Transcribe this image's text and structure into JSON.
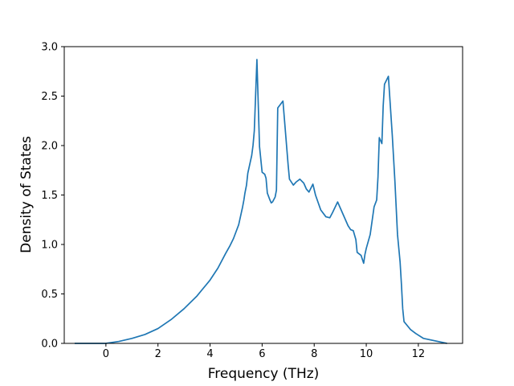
{
  "chart_data": {
    "type": "line",
    "title": "",
    "xlabel": "Frequency (THz)",
    "ylabel": "Density of States",
    "xlim": [
      -1.6,
      13.7
    ],
    "ylim": [
      0,
      3.0
    ],
    "grid": false,
    "legend": "none",
    "x_ticks": [
      0,
      2,
      4,
      6,
      8,
      10,
      12
    ],
    "x_tick_labels": [
      "0",
      "2",
      "4",
      "6",
      "8",
      "10",
      "12"
    ],
    "y_ticks": [
      0,
      0.5,
      1.0,
      1.5,
      2.0,
      2.5,
      3.0
    ],
    "y_tick_labels": [
      "0.0",
      "0.5",
      "1.0",
      "1.5",
      "2.0",
      "2.5",
      "3.0"
    ],
    "series": [
      {
        "color": "#1f77b4",
        "x": [
          -1.2,
          -0.5,
          0.0,
          0.5,
          1.0,
          1.5,
          2.0,
          2.5,
          3.0,
          3.5,
          4.0,
          4.3,
          4.6,
          4.75,
          4.9,
          5.1,
          5.25,
          5.3,
          5.34,
          5.4,
          5.45,
          5.5,
          5.6,
          5.65,
          5.7,
          5.8,
          5.9,
          6.0,
          6.1,
          6.15,
          6.2,
          6.3,
          6.35,
          6.4,
          6.5,
          6.55,
          6.6,
          6.8,
          7.0,
          7.05,
          7.2,
          7.3,
          7.45,
          7.6,
          7.7,
          7.8,
          7.95,
          8.05,
          8.25,
          8.45,
          8.6,
          8.7,
          8.9,
          9.1,
          9.3,
          9.4,
          9.5,
          9.6,
          9.65,
          9.8,
          9.9,
          9.95,
          10.0,
          10.15,
          10.3,
          10.4,
          10.45,
          10.5,
          10.6,
          10.65,
          10.7,
          10.85,
          11.0,
          11.1,
          11.2,
          11.3,
          11.35,
          11.4,
          11.45,
          11.7,
          11.9,
          12.2,
          13.1
        ],
        "y": [
          0.0,
          0.0,
          0.0,
          0.02,
          0.05,
          0.09,
          0.15,
          0.24,
          0.35,
          0.48,
          0.64,
          0.76,
          0.91,
          0.98,
          1.06,
          1.2,
          1.38,
          1.45,
          1.52,
          1.6,
          1.72,
          1.78,
          1.9,
          2.0,
          2.15,
          2.87,
          1.99,
          1.73,
          1.71,
          1.67,
          1.52,
          1.45,
          1.42,
          1.43,
          1.48,
          1.55,
          2.38,
          2.45,
          1.8,
          1.66,
          1.6,
          1.63,
          1.66,
          1.62,
          1.56,
          1.53,
          1.61,
          1.5,
          1.35,
          1.28,
          1.27,
          1.32,
          1.43,
          1.31,
          1.19,
          1.15,
          1.14,
          1.05,
          0.92,
          0.89,
          0.81,
          0.9,
          0.96,
          1.1,
          1.38,
          1.45,
          1.68,
          2.08,
          2.02,
          2.4,
          2.62,
          2.7,
          2.1,
          1.64,
          1.1,
          0.82,
          0.6,
          0.35,
          0.22,
          0.14,
          0.1,
          0.05,
          0.0
        ]
      }
    ]
  }
}
